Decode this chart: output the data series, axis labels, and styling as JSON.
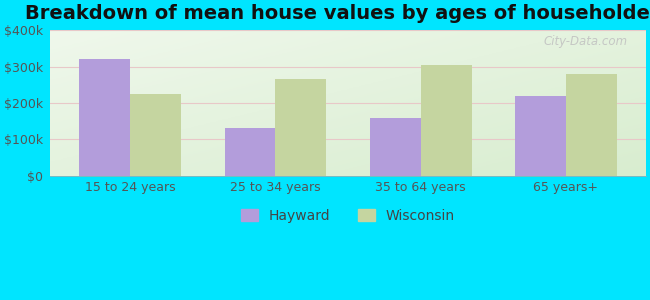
{
  "title": "Breakdown of mean house values by ages of householders",
  "categories": [
    "15 to 24 years",
    "25 to 34 years",
    "35 to 64 years",
    "65 years+"
  ],
  "hayward_values": [
    320000,
    130000,
    160000,
    220000
  ],
  "wisconsin_values": [
    225000,
    265000,
    305000,
    280000
  ],
  "hayward_color": "#b39ddb",
  "wisconsin_color": "#c5d5a0",
  "background_color": "#00e5ff",
  "ylim": [
    0,
    400000
  ],
  "yticks": [
    0,
    100000,
    200000,
    300000,
    400000
  ],
  "ytick_labels": [
    "$0",
    "$100k",
    "$200k",
    "$300k",
    "$400k"
  ],
  "bar_width": 0.35,
  "legend_hayward": "Hayward",
  "legend_wisconsin": "Wisconsin",
  "title_fontsize": 14,
  "tick_fontsize": 9,
  "legend_fontsize": 10,
  "grid_color": "#e8c8c8",
  "watermark_text": "City-Data.com",
  "watermark_color": "#c0c0c0"
}
